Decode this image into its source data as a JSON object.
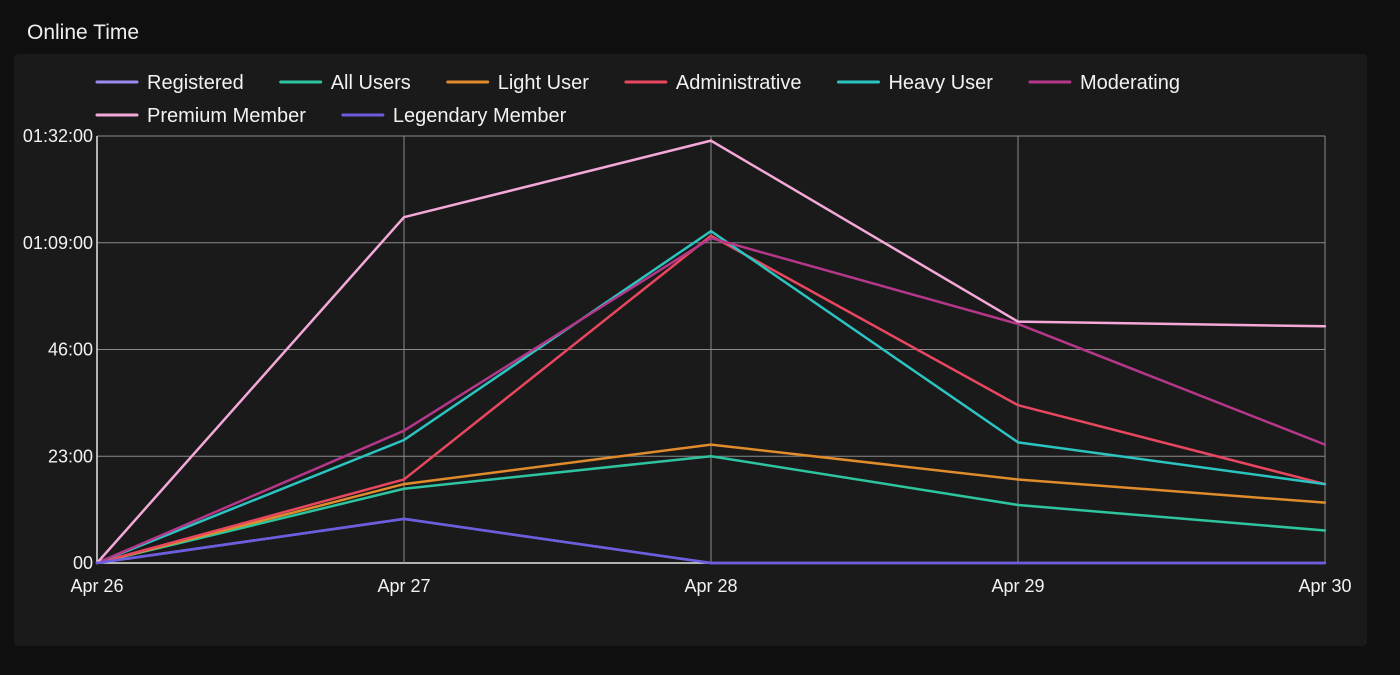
{
  "panel": {
    "title": "Online Time"
  },
  "chart_data": {
    "type": "line",
    "title": "Online Time",
    "xlabel": "",
    "ylabel": "",
    "categories": [
      "Apr 26",
      "Apr 27",
      "Apr 28",
      "Apr 29",
      "Apr 30"
    ],
    "y_unit": "minutes",
    "ylim": [
      0,
      92
    ],
    "y_ticks": [
      0,
      23,
      46,
      69,
      92
    ],
    "y_tick_labels": [
      "00",
      "23:00",
      "46:00",
      "01:09:00",
      "01:32:00"
    ],
    "grid": true,
    "legend_position": "top-left",
    "series": [
      {
        "name": "Registered",
        "color": "#9b8cf2",
        "values": [
          0,
          9.5,
          0,
          0,
          0
        ]
      },
      {
        "name": "All Users",
        "color": "#2ec4a0",
        "values": [
          0,
          16,
          23,
          12.5,
          7
        ]
      },
      {
        "name": "Light User",
        "color": "#e08b2c",
        "values": [
          0,
          17,
          25.5,
          18,
          13
        ]
      },
      {
        "name": "Administrative",
        "color": "#e8475f",
        "values": [
          0,
          18,
          70.5,
          34,
          17
        ]
      },
      {
        "name": "Heavy User",
        "color": "#2cc4c0",
        "values": [
          0,
          26.5,
          71.5,
          26,
          17
        ]
      },
      {
        "name": "Moderating",
        "color": "#b5378a",
        "values": [
          0,
          28.5,
          70,
          51.5,
          25.5
        ]
      },
      {
        "name": "Premium Member",
        "color": "#f5a9d8",
        "values": [
          0,
          74.5,
          91,
          52,
          51
        ]
      },
      {
        "name": "Legendary Member",
        "color": "#6b5ce0",
        "values": [
          0,
          9.5,
          0,
          0,
          0
        ]
      }
    ]
  }
}
